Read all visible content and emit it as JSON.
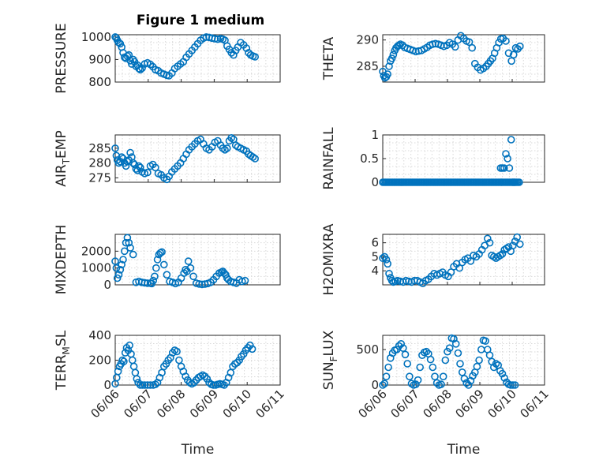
{
  "figure_title": "Figure 1 medium",
  "colors": {
    "marker": "#0072BD",
    "axes": "#262626",
    "grid": "#d9d9d9",
    "background": "#ffffff"
  },
  "chart_data": [
    {
      "type": "scatter",
      "ylabel": "PRESSURE",
      "title": "Figure 1 medium",
      "ylim": [
        800,
        1010
      ],
      "yticks": [
        800,
        900,
        1000
      ],
      "xlim": [
        0,
        4.6
      ],
      "grid": true,
      "x": [
        0.0,
        0.03,
        0.06,
        0.1,
        0.14,
        0.18,
        0.22,
        0.26,
        0.3,
        0.34,
        0.38,
        0.42,
        0.46,
        0.5,
        0.54,
        0.58,
        0.62,
        0.66,
        0.7,
        0.75,
        0.82,
        0.9,
        0.98,
        1.05,
        1.12,
        1.2,
        1.28,
        1.36,
        1.44,
        1.5,
        1.58,
        1.66,
        1.74,
        1.82,
        1.9,
        1.98,
        2.06,
        2.14,
        2.22,
        2.3,
        2.38,
        2.46,
        2.54,
        2.62,
        2.7,
        2.78,
        2.86,
        2.94,
        3.0,
        3.06,
        3.12,
        3.18,
        3.24,
        3.3,
        3.36,
        3.42,
        3.5,
        3.58,
        3.66,
        3.72,
        3.78,
        3.84,
        3.9
      ],
      "y": [
        1000,
        995,
        985,
        975,
        970,
        955,
        930,
        910,
        905,
        915,
        920,
        895,
        880,
        900,
        890,
        870,
        875,
        860,
        855,
        862,
        880,
        885,
        878,
        868,
        855,
        850,
        840,
        835,
        830,
        828,
        840,
        860,
        870,
        880,
        890,
        910,
        925,
        940,
        955,
        970,
        985,
        995,
        1000,
        998,
        995,
        992,
        990,
        993,
        990,
        985,
        960,
        945,
        930,
        920,
        940,
        955,
        975,
        965,
        950,
        930,
        920,
        915,
        912
      ]
    },
    {
      "type": "scatter",
      "ylabel": "THETA",
      "ylim": [
        282,
        291
      ],
      "yticks": [
        285,
        290
      ],
      "xlim": [
        0,
        4.6
      ],
      "grid": true,
      "x": [
        0.0,
        0.03,
        0.06,
        0.1,
        0.14,
        0.18,
        0.22,
        0.26,
        0.3,
        0.34,
        0.38,
        0.42,
        0.46,
        0.5,
        0.56,
        0.62,
        0.7,
        0.78,
        0.86,
        0.94,
        1.02,
        1.1,
        1.18,
        1.26,
        1.34,
        1.42,
        1.5,
        1.58,
        1.66,
        1.74,
        1.82,
        1.9,
        1.98,
        2.06,
        2.14,
        2.22,
        2.3,
        2.38,
        2.46,
        2.54,
        2.62,
        2.7,
        2.78,
        2.86,
        2.94,
        3.0,
        3.06,
        3.12,
        3.18,
        3.24,
        3.3,
        3.36,
        3.42,
        3.5,
        3.58,
        3.66,
        3.72,
        3.78,
        3.84,
        3.9
      ],
      "y": [
        284.0,
        283.2,
        282.8,
        283.0,
        283.5,
        285.0,
        286.0,
        286.5,
        287.2,
        288.0,
        288.5,
        288.8,
        289.0,
        289.2,
        289.0,
        288.6,
        288.4,
        288.2,
        288.0,
        287.8,
        287.9,
        288.0,
        288.3,
        288.6,
        289.0,
        289.2,
        289.3,
        289.2,
        289.0,
        288.8,
        289.0,
        289.5,
        289.2,
        288.7,
        290.0,
        290.8,
        290.3,
        289.8,
        289.6,
        288.5,
        285.5,
        284.8,
        284.3,
        284.6,
        285.0,
        285.5,
        286.0,
        286.5,
        287.5,
        288.5,
        289.5,
        290.2,
        290.3,
        289.8,
        287.5,
        286.0,
        287.2,
        288.5,
        288.3,
        288.8
      ]
    },
    {
      "type": "scatter",
      "ylabel": "AIR_TEMP",
      "ylim": [
        273.5,
        289.5
      ],
      "yticks": [
        275,
        280,
        285
      ],
      "xlim": [
        0,
        4.6
      ],
      "grid": true,
      "x": [
        0.0,
        0.03,
        0.06,
        0.1,
        0.14,
        0.18,
        0.22,
        0.26,
        0.3,
        0.34,
        0.38,
        0.42,
        0.46,
        0.5,
        0.54,
        0.58,
        0.62,
        0.66,
        0.7,
        0.75,
        0.82,
        0.9,
        0.98,
        1.05,
        1.12,
        1.2,
        1.28,
        1.36,
        1.44,
        1.5,
        1.58,
        1.66,
        1.74,
        1.82,
        1.9,
        1.98,
        2.06,
        2.14,
        2.22,
        2.3,
        2.38,
        2.46,
        2.54,
        2.62,
        2.7,
        2.78,
        2.86,
        2.94,
        3.0,
        3.06,
        3.12,
        3.18,
        3.24,
        3.3,
        3.36,
        3.42,
        3.5,
        3.58,
        3.66,
        3.72,
        3.78,
        3.84,
        3.9
      ],
      "y": [
        285.0,
        282.5,
        281.0,
        280.0,
        280.5,
        282.0,
        281.5,
        280.0,
        279.0,
        280.5,
        281.0,
        283.5,
        282.0,
        280.0,
        279.5,
        278.0,
        277.5,
        279.0,
        278.5,
        277.0,
        276.5,
        276.8,
        279.0,
        279.5,
        278.5,
        276.5,
        276.0,
        275.0,
        274.5,
        275.5,
        277.0,
        278.0,
        279.0,
        280.0,
        281.5,
        283.0,
        284.5,
        285.5,
        286.5,
        287.5,
        288.0,
        286.5,
        285.0,
        284.5,
        285.5,
        287.0,
        287.5,
        286.0,
        285.0,
        284.5,
        285.0,
        287.5,
        288.5,
        288.0,
        286.0,
        285.5,
        285.0,
        284.5,
        284.0,
        283.0,
        282.5,
        282.0,
        281.5
      ]
    },
    {
      "type": "scatter",
      "ylabel": "RAINFALL",
      "ylim": [
        0,
        1
      ],
      "yticks": [
        0,
        0.5,
        1
      ],
      "xlim": [
        0,
        4.6
      ],
      "grid": true,
      "x_zero_run": {
        "start": 0.0,
        "end": 3.9,
        "step": 0.04
      },
      "x": [
        3.35,
        3.4,
        3.45,
        3.5,
        3.55,
        3.6,
        3.65,
        3.7,
        3.75
      ],
      "y": [
        0.3,
        0.3,
        0.3,
        0.6,
        0.5,
        0.3,
        0.9,
        0,
        0
      ]
    },
    {
      "type": "scatter",
      "ylabel": "MIXDEPTH",
      "ylim": [
        0,
        3000
      ],
      "yticks": [
        0,
        1000,
        2000
      ],
      "xlim": [
        0,
        4.6
      ],
      "grid": true,
      "x": [
        0.0,
        0.03,
        0.06,
        0.1,
        0.14,
        0.18,
        0.22,
        0.26,
        0.3,
        0.34,
        0.38,
        0.42,
        0.5,
        0.58,
        0.66,
        0.74,
        0.82,
        0.9,
        0.98,
        1.02,
        1.06,
        1.1,
        1.14,
        1.18,
        1.22,
        1.26,
        1.3,
        1.36,
        1.44,
        1.52,
        1.6,
        1.68,
        1.76,
        1.84,
        1.92,
        1.96,
        2.0,
        2.04,
        2.1,
        2.18,
        2.26,
        2.34,
        2.42,
        2.5,
        2.58,
        2.66,
        2.74,
        2.82,
        2.9,
        2.96,
        3.0,
        3.04,
        3.08,
        3.12,
        3.16,
        3.22,
        3.3,
        3.38,
        3.46,
        3.54,
        3.62
      ],
      "y": [
        1400,
        1000,
        400,
        600,
        900,
        1200,
        1500,
        2000,
        2500,
        2800,
        2500,
        2200,
        1800,
        150,
        200,
        150,
        120,
        100,
        100,
        80,
        250,
        500,
        1000,
        1500,
        1800,
        1900,
        1950,
        1200,
        600,
        200,
        150,
        80,
        150,
        400,
        700,
        900,
        800,
        1400,
        1000,
        500,
        100,
        50,
        30,
        40,
        80,
        150,
        300,
        500,
        700,
        750,
        800,
        700,
        600,
        400,
        300,
        200,
        150,
        100,
        300,
        200,
        250
      ]
    },
    {
      "type": "scatter",
      "ylabel": "H2OMIXRA",
      "ylim": [
        3.0,
        6.6
      ],
      "yticks": [
        4,
        5,
        6
      ],
      "xlim": [
        0,
        4.6
      ],
      "grid": true,
      "x": [
        0.0,
        0.05,
        0.1,
        0.14,
        0.18,
        0.22,
        0.26,
        0.3,
        0.36,
        0.42,
        0.5,
        0.58,
        0.66,
        0.74,
        0.82,
        0.9,
        0.98,
        1.06,
        1.14,
        1.22,
        1.3,
        1.38,
        1.46,
        1.54,
        1.62,
        1.7,
        1.78,
        1.86,
        1.94,
        2.02,
        2.1,
        2.18,
        2.26,
        2.34,
        2.42,
        2.5,
        2.58,
        2.66,
        2.74,
        2.82,
        2.9,
        2.98,
        3.04,
        3.1,
        3.16,
        3.22,
        3.28,
        3.34,
        3.4,
        3.46,
        3.52,
        3.58,
        3.64,
        3.7,
        3.76,
        3.82,
        3.9
      ],
      "y": [
        4.9,
        5.0,
        4.8,
        4.5,
        3.8,
        3.5,
        3.3,
        3.2,
        3.25,
        3.3,
        3.25,
        3.2,
        3.3,
        3.25,
        3.2,
        3.3,
        3.3,
        3.2,
        3.1,
        3.3,
        3.4,
        3.6,
        3.8,
        3.7,
        3.8,
        3.9,
        3.7,
        3.6,
        3.9,
        4.3,
        4.5,
        4.2,
        4.6,
        4.8,
        4.9,
        4.7,
        5.1,
        5.0,
        5.2,
        5.5,
        5.8,
        6.3,
        6.0,
        5.1,
        5.0,
        4.9,
        5.0,
        5.1,
        5.2,
        5.5,
        5.6,
        5.7,
        5.4,
        5.8,
        6.1,
        6.4,
        5.9
      ]
    },
    {
      "type": "scatter",
      "ylabel": "TERR_MSL",
      "ylim": [
        0,
        400
      ],
      "yticks": [
        0,
        200,
        400
      ],
      "xlim": [
        0,
        4.6
      ],
      "grid": true,
      "x": [
        0.0,
        0.04,
        0.08,
        0.12,
        0.16,
        0.2,
        0.24,
        0.28,
        0.32,
        0.36,
        0.4,
        0.44,
        0.48,
        0.52,
        0.56,
        0.6,
        0.64,
        0.7,
        0.76,
        0.82,
        0.9,
        0.98,
        1.06,
        1.12,
        1.18,
        1.24,
        1.3,
        1.36,
        1.42,
        1.48,
        1.54,
        1.6,
        1.66,
        1.72,
        1.78,
        1.84,
        1.9,
        1.96,
        2.02,
        2.08,
        2.14,
        2.2,
        2.26,
        2.32,
        2.38,
        2.44,
        2.5,
        2.56,
        2.62,
        2.68,
        2.74,
        2.8,
        2.86,
        2.92,
        2.98,
        3.04,
        3.1,
        3.16,
        3.22,
        3.28,
        3.34,
        3.4,
        3.46,
        3.52,
        3.58,
        3.64,
        3.7,
        3.76,
        3.82
      ],
      "y": [
        10,
        60,
        110,
        150,
        170,
        200,
        190,
        260,
        300,
        280,
        320,
        250,
        200,
        150,
        100,
        50,
        20,
        0,
        0,
        0,
        0,
        0,
        0,
        5,
        20,
        60,
        100,
        150,
        170,
        200,
        220,
        260,
        280,
        270,
        200,
        150,
        110,
        70,
        40,
        20,
        10,
        20,
        40,
        60,
        70,
        80,
        70,
        50,
        20,
        5,
        0,
        0,
        5,
        10,
        5,
        0,
        20,
        60,
        100,
        150,
        170,
        180,
        200,
        230,
        250,
        280,
        300,
        320,
        290
      ]
    },
    {
      "type": "scatter",
      "ylabel": "SUN_FLUX",
      "ylim": [
        0,
        700
      ],
      "yticks": [
        0,
        500
      ],
      "xlim": [
        0,
        4.6
      ],
      "grid": true,
      "xticklabels": [
        "06/06",
        "06/07",
        "06/08",
        "06/09",
        "06/10",
        "06/11"
      ],
      "xlabel": "Time",
      "x": [
        0.0,
        0.05,
        0.1,
        0.16,
        0.22,
        0.28,
        0.34,
        0.4,
        0.46,
        0.52,
        0.58,
        0.64,
        0.7,
        0.76,
        0.82,
        0.88,
        0.94,
        1.0,
        1.06,
        1.12,
        1.18,
        1.24,
        1.3,
        1.36,
        1.42,
        1.48,
        1.54,
        1.6,
        1.66,
        1.72,
        1.78,
        1.84,
        1.9,
        1.96,
        2.02,
        2.08,
        2.14,
        2.2,
        2.26,
        2.32,
        2.38,
        2.44,
        2.5,
        2.56,
        2.62,
        2.68,
        2.74,
        2.8,
        2.86,
        2.92,
        2.98,
        3.04,
        3.1,
        3.16,
        3.22,
        3.28,
        3.34,
        3.4,
        3.46,
        3.52,
        3.58,
        3.64,
        3.7,
        3.76
      ],
      "y": [
        0,
        20,
        120,
        250,
        380,
        450,
        490,
        500,
        550,
        580,
        520,
        430,
        300,
        120,
        20,
        0,
        10,
        70,
        250,
        420,
        460,
        470,
        440,
        360,
        250,
        120,
        30,
        0,
        10,
        120,
        350,
        470,
        520,
        660,
        650,
        580,
        450,
        300,
        180,
        90,
        30,
        0,
        60,
        130,
        180,
        260,
        350,
        500,
        630,
        620,
        500,
        420,
        330,
        250,
        300,
        280,
        200,
        160,
        100,
        40,
        10,
        0,
        0,
        0
      ]
    }
  ]
}
